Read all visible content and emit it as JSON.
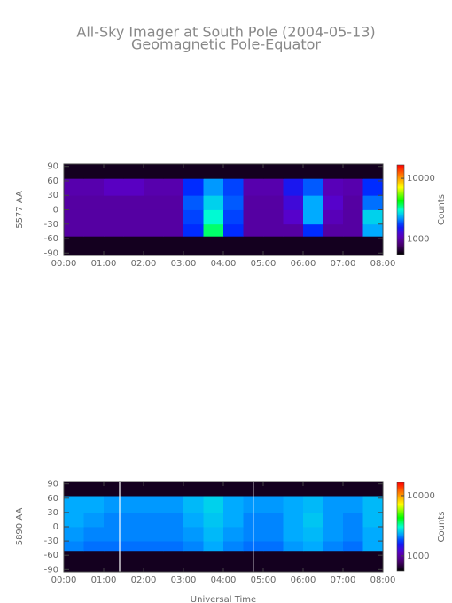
{
  "chart_data": [
    {
      "type": "heatmap",
      "title": "All-Sky Imager at South Pole (2004-05-13)",
      "subtitle": "Geomagnetic Pole-Equator",
      "ylabel": "5577 AA",
      "xlim": [
        0,
        8
      ],
      "xticks": [
        {
          "value": 0,
          "label": "00:00"
        },
        {
          "value": 1,
          "label": "01:00"
        },
        {
          "value": 2,
          "label": "02:00"
        },
        {
          "value": 3,
          "label": "03:00"
        },
        {
          "value": 4,
          "label": "04:00"
        },
        {
          "value": 5,
          "label": "05:00"
        },
        {
          "value": 6,
          "label": "06:00"
        },
        {
          "value": 7,
          "label": "07:00"
        },
        {
          "value": 8,
          "label": "08:00"
        }
      ],
      "ylim": [
        -95,
        95
      ],
      "yticks": [
        90,
        60,
        30,
        0,
        -30,
        -60,
        -90
      ],
      "x_bins": [
        0,
        0.5,
        1,
        1.5,
        2,
        2.5,
        3,
        3.5,
        4,
        4.5,
        5,
        5.5,
        6,
        6.5,
        7,
        7.5,
        8
      ],
      "y_bins": [
        -95,
        -55,
        -30,
        0,
        30,
        65,
        95
      ],
      "counts": [
        [
          620,
          620,
          620,
          620,
          620,
          620,
          620,
          620,
          620,
          620,
          620,
          620,
          620,
          620,
          620,
          620
        ],
        [
          1000,
          1000,
          1000,
          1000,
          1000,
          1000,
          1700,
          3600,
          1700,
          1000,
          1000,
          1000,
          1700,
          1000,
          1000,
          2300
        ],
        [
          1000,
          1000,
          1000,
          1000,
          1000,
          1000,
          1800,
          3000,
          1800,
          1000,
          1000,
          1200,
          2300,
          1100,
          1000,
          2600
        ],
        [
          1000,
          1000,
          1000,
          1000,
          1000,
          1000,
          1900,
          2600,
          1900,
          1000,
          1000,
          1300,
          2300,
          1200,
          1000,
          2000
        ],
        [
          1050,
          1050,
          1150,
          1150,
          1050,
          1050,
          1700,
          2200,
          1800,
          1050,
          1050,
          1500,
          1900,
          1100,
          1050,
          1700
        ],
        [
          620,
          620,
          620,
          620,
          620,
          620,
          620,
          620,
          620,
          620,
          620,
          620,
          620,
          620,
          620,
          620
        ]
      ],
      "colorbar": {
        "label": "Counts",
        "log": true,
        "lim": [
          560,
          16600
        ],
        "ticks": [
          10000,
          1000
        ]
      }
    },
    {
      "type": "heatmap",
      "ylabel": "5890 AA",
      "xlabel": "Universal Time",
      "xlim": [
        0,
        8
      ],
      "xticks": [
        {
          "value": 0,
          "label": "00:00"
        },
        {
          "value": 1,
          "label": "01:00"
        },
        {
          "value": 2,
          "label": "02:00"
        },
        {
          "value": 3,
          "label": "03:00"
        },
        {
          "value": 4,
          "label": "04:00"
        },
        {
          "value": 5,
          "label": "05:00"
        },
        {
          "value": 6,
          "label": "06:00"
        },
        {
          "value": 7,
          "label": "07:00"
        },
        {
          "value": 8,
          "label": "08:00"
        }
      ],
      "ylim": [
        -95,
        95
      ],
      "yticks": [
        90,
        60,
        30,
        0,
        -30,
        -60,
        -90
      ],
      "x_bins": [
        0,
        0.5,
        1,
        1.5,
        2,
        2.5,
        3,
        3.5,
        4,
        4.5,
        5,
        5.5,
        6,
        6.5,
        7,
        7.5,
        8
      ],
      "y_bins": [
        -95,
        -50,
        -30,
        0,
        30,
        65,
        95
      ],
      "counts": [
        [
          620,
          620,
          620,
          620,
          620,
          620,
          620,
          620,
          620,
          620,
          620,
          620,
          620,
          620,
          620,
          620
        ],
        [
          2100,
          2000,
          2000,
          2000,
          2000,
          2000,
          2100,
          2300,
          2100,
          2000,
          2000,
          2200,
          2300,
          2100,
          2000,
          2300
        ],
        [
          2200,
          2100,
          2100,
          2100,
          2100,
          2100,
          2200,
          2400,
          2200,
          2100,
          2100,
          2300,
          2400,
          2200,
          2100,
          2300
        ],
        [
          2300,
          2200,
          2100,
          2100,
          2100,
          2100,
          2300,
          2500,
          2300,
          2100,
          2100,
          2300,
          2500,
          2200,
          2100,
          2400
        ],
        [
          2300,
          2300,
          2200,
          2200,
          2200,
          2200,
          2400,
          2600,
          2300,
          2200,
          2200,
          2300,
          2400,
          2200,
          2200,
          2400
        ],
        [
          620,
          620,
          620,
          620,
          620,
          620,
          620,
          620,
          620,
          620,
          620,
          620,
          620,
          620,
          620,
          620
        ]
      ],
      "gap_lines": [
        1.4,
        4.75
      ],
      "colorbar": {
        "label": "Counts",
        "log": true,
        "lim": [
          560,
          16600
        ],
        "ticks": [
          10000,
          1000
        ]
      }
    }
  ]
}
